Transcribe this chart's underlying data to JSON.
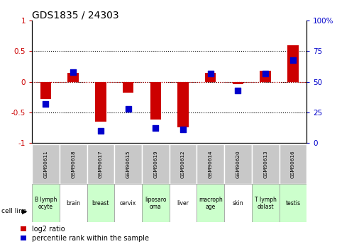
{
  "title": "GDS1835 / 24303",
  "samples": [
    "GSM90611",
    "GSM90618",
    "GSM90617",
    "GSM90615",
    "GSM90619",
    "GSM90612",
    "GSM90614",
    "GSM90620",
    "GSM90613",
    "GSM90616"
  ],
  "cell_lines": [
    "B lymph\nocyte",
    "brain",
    "breast",
    "cervix",
    "liposaro\noma",
    "liver",
    "macroph\nage",
    "skin",
    "T lymph\noblast",
    "testis"
  ],
  "cell_line_colors": [
    "#ccffcc",
    "white",
    "#ccffcc",
    "white",
    "#ccffcc",
    "white",
    "#ccffcc",
    "white",
    "#ccffcc",
    "#ccffcc"
  ],
  "log2_ratio": [
    -0.28,
    0.15,
    -0.65,
    -0.18,
    -0.62,
    -0.75,
    0.14,
    -0.04,
    0.18,
    0.6
  ],
  "percentile_rank": [
    32,
    58,
    10,
    28,
    12,
    11,
    57,
    43,
    57,
    68
  ],
  "ylim_left": [
    -1,
    1
  ],
  "ylim_right": [
    0,
    100
  ],
  "bar_color": "#cc0000",
  "dot_color": "#0000cc",
  "grid_yticks": [
    -0.5,
    0.0,
    0.5
  ],
  "left_yticks": [
    -1,
    -0.5,
    0,
    0.5,
    1
  ],
  "left_yticklabels": [
    "-1",
    "-0.5",
    "0",
    "0.5",
    "1"
  ],
  "right_yticks": [
    0,
    25,
    50,
    75,
    100
  ],
  "right_yticklabels": [
    "0",
    "25",
    "50",
    "75",
    "100%"
  ],
  "bar_width": 0.4,
  "dot_size": 28,
  "title_fontsize": 10,
  "tick_fontsize": 7.5,
  "legend_fontsize": 7,
  "right_tick_color": "#0000cc",
  "left_tick_color": "#cc0000",
  "gsm_bg": "#c8c8c8"
}
